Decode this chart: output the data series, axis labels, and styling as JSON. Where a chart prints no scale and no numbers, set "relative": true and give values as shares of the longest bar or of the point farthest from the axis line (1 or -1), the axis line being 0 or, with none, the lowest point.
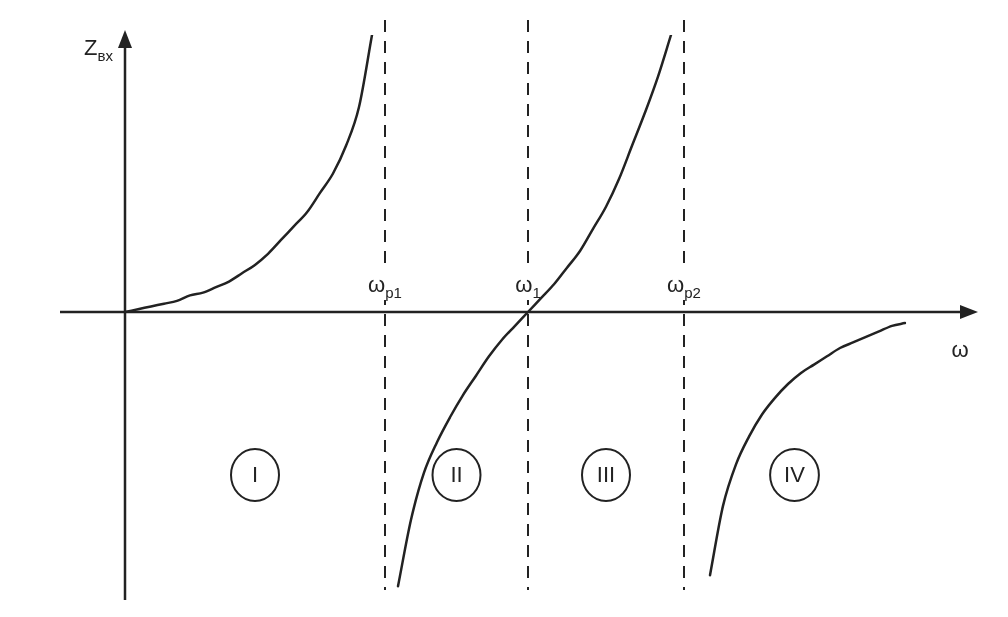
{
  "chart_data": {
    "type": "line",
    "relative": true,
    "xlabel": "ω",
    "ylabel": "Z$_{вх}$",
    "tick_labels": "x",
    "legend": false,
    "grid": false,
    "marker": "none",
    "categories": [
      null,
      null,
      null,
      null,
      null,
      null,
      null,
      null,
      null,
      null,
      null,
      null,
      null,
      null,
      null,
      null,
      null,
      null,
      null,
      null,
      "ω$_{р1}$",
      null,
      null,
      null,
      null,
      null,
      null,
      null,
      null,
      null,
      null,
      "ω$_{1}$",
      null,
      null,
      null,
      null,
      null,
      null,
      null,
      null,
      null,
      null,
      null,
      "ω$_{р2}$",
      null,
      null,
      null,
      null,
      null,
      null,
      null,
      null,
      null,
      null,
      null,
      null,
      null,
      null,
      null,
      null,
      null
    ],
    "series": [
      {
        "color": "#222222",
        "values": [
          0,
          0.01,
          0.02,
          0.03,
          0.04,
          0.06,
          0.07,
          0.09,
          0.11,
          0.14,
          0.17,
          0.21,
          0.26,
          0.31,
          0.36,
          0.43,
          0.5,
          0.6,
          0.74,
          1,
          null,
          null,
          null,
          null,
          null,
          null,
          null,
          null,
          null,
          null,
          null,
          null,
          null,
          null,
          null,
          null,
          null,
          null,
          null,
          null,
          null,
          null,
          null,
          null,
          null,
          null,
          null,
          null,
          null,
          null,
          null,
          null,
          null,
          null,
          null,
          null,
          null,
          null,
          null,
          null,
          null
        ]
      },
      {
        "color": "#222222",
        "values": [
          null,
          null,
          null,
          null,
          null,
          null,
          null,
          null,
          null,
          null,
          null,
          null,
          null,
          null,
          null,
          null,
          null,
          null,
          null,
          null,
          null,
          -0.99,
          -0.75,
          -0.58,
          -0.47,
          -0.38,
          -0.3,
          -0.23,
          -0.16,
          -0.1,
          -0.05,
          0,
          0.05,
          0.1,
          0.16,
          0.22,
          0.3,
          0.38,
          0.48,
          0.6,
          0.72,
          0.85,
          1,
          null,
          null,
          null,
          null,
          null,
          null,
          null,
          null,
          null,
          null,
          null,
          null,
          null,
          null,
          null,
          null,
          null,
          null
        ]
      },
      {
        "color": "#222222",
        "values": [
          null,
          null,
          null,
          null,
          null,
          null,
          null,
          null,
          null,
          null,
          null,
          null,
          null,
          null,
          null,
          null,
          null,
          null,
          null,
          null,
          null,
          null,
          null,
          null,
          null,
          null,
          null,
          null,
          null,
          null,
          null,
          null,
          null,
          null,
          null,
          null,
          null,
          null,
          null,
          null,
          null,
          null,
          null,
          null,
          null,
          -0.95,
          -0.7,
          -0.55,
          -0.45,
          -0.37,
          -0.31,
          -0.26,
          -0.22,
          -0.19,
          -0.16,
          -0.13,
          -0.11,
          -0.09,
          -0.07,
          -0.05,
          -0.04
        ]
      }
    ],
    "ref_lines": [
      {
        "axis": "x",
        "value": "ω$_{р1}$",
        "line_style": "dashed"
      },
      {
        "axis": "x",
        "value": "ω$_{1}$",
        "line_style": "dashed"
      },
      {
        "axis": "x",
        "value": "ω$_{р2}$",
        "line_style": "dashed"
      }
    ],
    "annotations": [
      "I",
      "II",
      "III",
      "IV"
    ]
  }
}
